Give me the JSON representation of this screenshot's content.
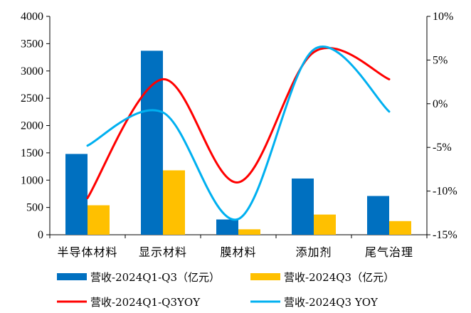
{
  "chart_data": {
    "type": "bar",
    "categories": [
      "半导体材料",
      "显示材料",
      "膜材料",
      "添加剂",
      "尾气治理"
    ],
    "series": [
      {
        "name": "营收-2024Q1-Q3（亿元）",
        "kind": "bar",
        "axis": "left",
        "color": "#0070C0",
        "values": [
          1480,
          3370,
          280,
          1030,
          710
        ]
      },
      {
        "name": "营收-2024Q3（亿元）",
        "kind": "bar",
        "axis": "left",
        "color": "#FFC000",
        "values": [
          540,
          1180,
          100,
          370,
          250
        ]
      },
      {
        "name": "营收-2024Q1-Q3YOY",
        "kind": "line",
        "axis": "right",
        "color": "#FF0000",
        "values": [
          -10.8,
          2.8,
          -9.0,
          5.9,
          2.8
        ]
      },
      {
        "name": "营收-2024Q3 YOY",
        "kind": "line",
        "axis": "right",
        "color": "#00B0F0",
        "values": [
          -4.8,
          -1.0,
          -13.2,
          6.2,
          -0.9
        ]
      }
    ],
    "ylim_left": [
      0,
      4000
    ],
    "yticks_left": [
      0,
      500,
      1000,
      1500,
      2000,
      2500,
      3000,
      3500,
      4000
    ],
    "yticklabels_left": [
      "0",
      "500",
      "1000",
      "1500",
      "2000",
      "2500",
      "3000",
      "3500",
      "4000"
    ],
    "ylim_right": [
      -15,
      10
    ],
    "yticks_right": [
      -15,
      -10,
      -5,
      0,
      5,
      10
    ],
    "yticklabels_right": [
      "-15%",
      "-10%",
      "-5%",
      "0%",
      "5%",
      "10%"
    ],
    "grid": false,
    "legend_position": "bottom"
  }
}
